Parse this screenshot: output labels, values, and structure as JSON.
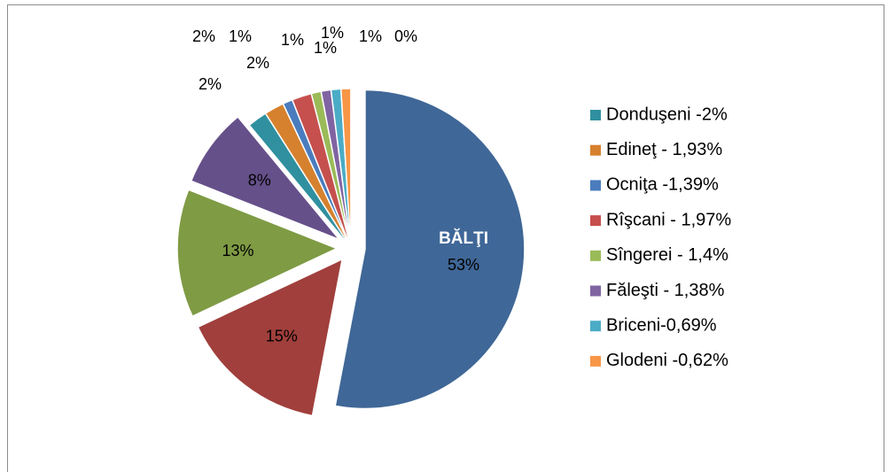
{
  "chart_data": {
    "type": "pie",
    "annotation": "BĂLŢI",
    "categories": [
      null,
      null,
      null,
      null,
      "Donduşeni -2%",
      "Edineţ - 1,93%",
      "Ocniţa -1,39%",
      "Rîşcani - 1,97%",
      "Sîngerei - 1,4%",
      "Făleşti - 1,38%",
      "Briceni-0,69%",
      "Glodeni -0,62%",
      null
    ],
    "values": [
      53,
      15,
      13,
      8,
      2,
      2,
      1,
      2,
      1,
      1,
      1,
      1,
      0
    ],
    "value_labels": [
      "53%",
      "15%",
      "13%",
      "8%",
      "2%",
      "2%",
      "1%",
      "2%",
      "1%",
      "1%",
      "1%",
      "1%",
      "0%"
    ],
    "colors": [
      "#3f6797",
      "#a03f3c",
      "#7f9b44",
      "#66508a",
      "#30909f",
      "#d6812e",
      "#4a7cbe",
      "#c5504d",
      "#9bbb59",
      "#8064a2",
      "#4bacc6",
      "#f79646",
      "#2c4d75"
    ],
    "legend": "right"
  }
}
